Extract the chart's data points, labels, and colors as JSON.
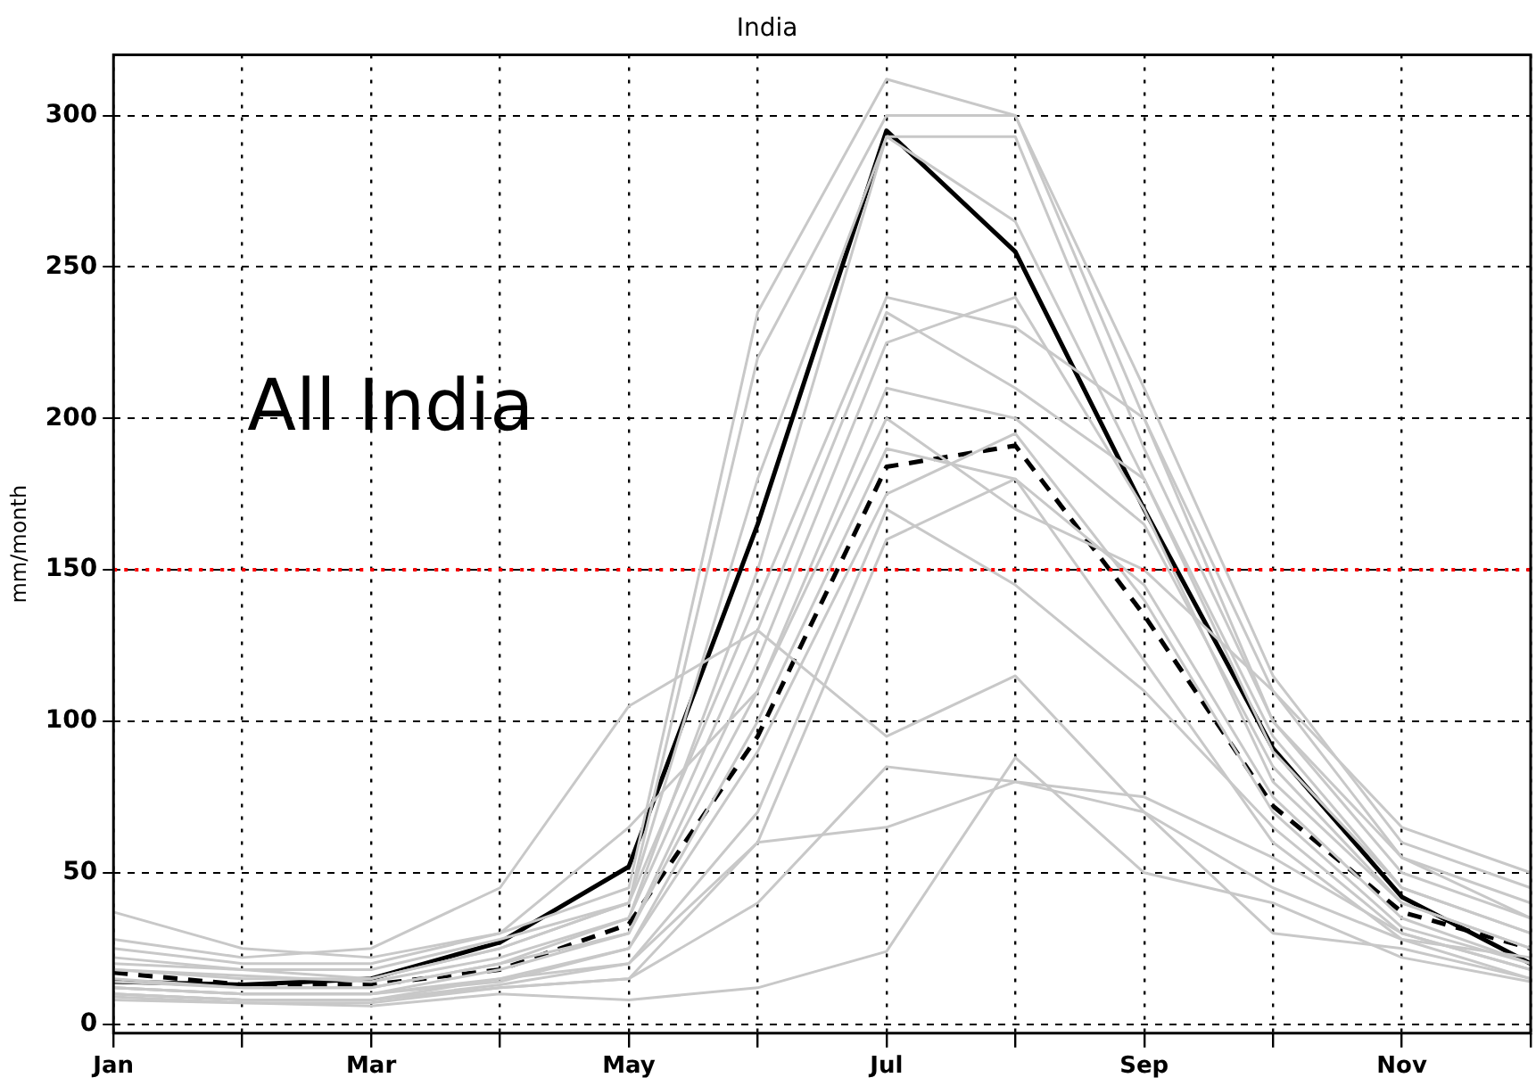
{
  "chart_data": {
    "type": "line",
    "title": "India",
    "ylabel": "mm/month",
    "annotations": [
      "All India"
    ],
    "categories": [
      "Jan",
      null,
      "Mar",
      null,
      "May",
      null,
      "Jul",
      null,
      "Sep",
      null,
      "Nov",
      null
    ],
    "ylim": [
      -3,
      320
    ],
    "yticks": [
      0,
      50,
      100,
      150,
      200,
      250,
      300
    ],
    "grid": true,
    "legend": false,
    "marker": "none",
    "ref_lines": [
      {
        "axis": "y",
        "value": 150,
        "color": "#ff0000",
        "line_style": "dotted"
      }
    ],
    "series": [
      {
        "color": "#c8c8c8",
        "values": [
          25,
          20,
          20,
          30,
          45,
          235,
          312,
          300,
          210,
          115,
          60,
          45
        ]
      },
      {
        "color": "#c8c8c8",
        "values": [
          20,
          18,
          18,
          28,
          40,
          220,
          300,
          300,
          200,
          110,
          55,
          40
        ]
      },
      {
        "color": "#c8c8c8",
        "values": [
          18,
          15,
          15,
          25,
          40,
          180,
          293,
          293,
          190,
          100,
          50,
          35
        ]
      },
      {
        "color": "#c8c8c8",
        "values": [
          15,
          12,
          12,
          20,
          35,
          150,
          293,
          265,
          180,
          95,
          45,
          30
        ]
      },
      {
        "color": "#c8c8c8",
        "values": [
          22,
          18,
          15,
          25,
          40,
          140,
          240,
          230,
          200,
          100,
          55,
          35
        ]
      },
      {
        "color": "#c8c8c8",
        "values": [
          18,
          16,
          14,
          22,
          35,
          130,
          235,
          210,
          180,
          90,
          45,
          30
        ]
      },
      {
        "color": "#c8c8c8",
        "values": [
          12,
          10,
          10,
          18,
          30,
          120,
          225,
          240,
          170,
          80,
          40,
          25
        ]
      },
      {
        "color": "#c8c8c8",
        "values": [
          14,
          12,
          12,
          20,
          30,
          110,
          210,
          200,
          165,
          85,
          40,
          25
        ]
      },
      {
        "color": "#c8c8c8",
        "values": [
          10,
          8,
          8,
          15,
          25,
          100,
          190,
          180,
          145,
          75,
          35,
          20
        ]
      },
      {
        "color": "#c8c8c8",
        "values": [
          12,
          10,
          10,
          14,
          25,
          90,
          175,
          195,
          140,
          70,
          32,
          20
        ]
      },
      {
        "color": "#c8c8c8",
        "values": [
          10,
          8,
          8,
          13,
          20,
          70,
          170,
          145,
          110,
          65,
          30,
          18
        ]
      },
      {
        "color": "#c8c8c8",
        "values": [
          8,
          7,
          7,
          12,
          15,
          60,
          160,
          180,
          120,
          60,
          28,
          15
        ]
      },
      {
        "color": "#c8c8c8",
        "values": [
          28,
          22,
          25,
          45,
          105,
          130,
          95,
          115,
          70,
          45,
          28,
          22
        ]
      },
      {
        "color": "#c8c8c8",
        "values": [
          10,
          8,
          8,
          12,
          15,
          40,
          85,
          80,
          75,
          55,
          30,
          18
        ]
      },
      {
        "color": "#c8c8c8",
        "values": [
          9,
          7,
          6,
          10,
          8,
          12,
          24,
          88,
          50,
          40,
          22,
          14
        ]
      },
      {
        "color": "#c8c8c8",
        "values": [
          12,
          10,
          10,
          15,
          20,
          60,
          65,
          80,
          70,
          30,
          25,
          15
        ]
      },
      {
        "color": "#c8c8c8",
        "values": [
          37,
          25,
          22,
          30,
          65,
          110,
          200,
          170,
          150,
          110,
          65,
          50
        ]
      },
      {
        "color": "#000000",
        "line_style": "dashed",
        "values": [
          17,
          13,
          13,
          18,
          33,
          95,
          184,
          191,
          135,
          72,
          37,
          25
        ]
      },
      {
        "color": "#000000",
        "line_style": "solid",
        "values": [
          14,
          13,
          15,
          27,
          52,
          165,
          295,
          255,
          170,
          91,
          42,
          20
        ]
      }
    ]
  }
}
